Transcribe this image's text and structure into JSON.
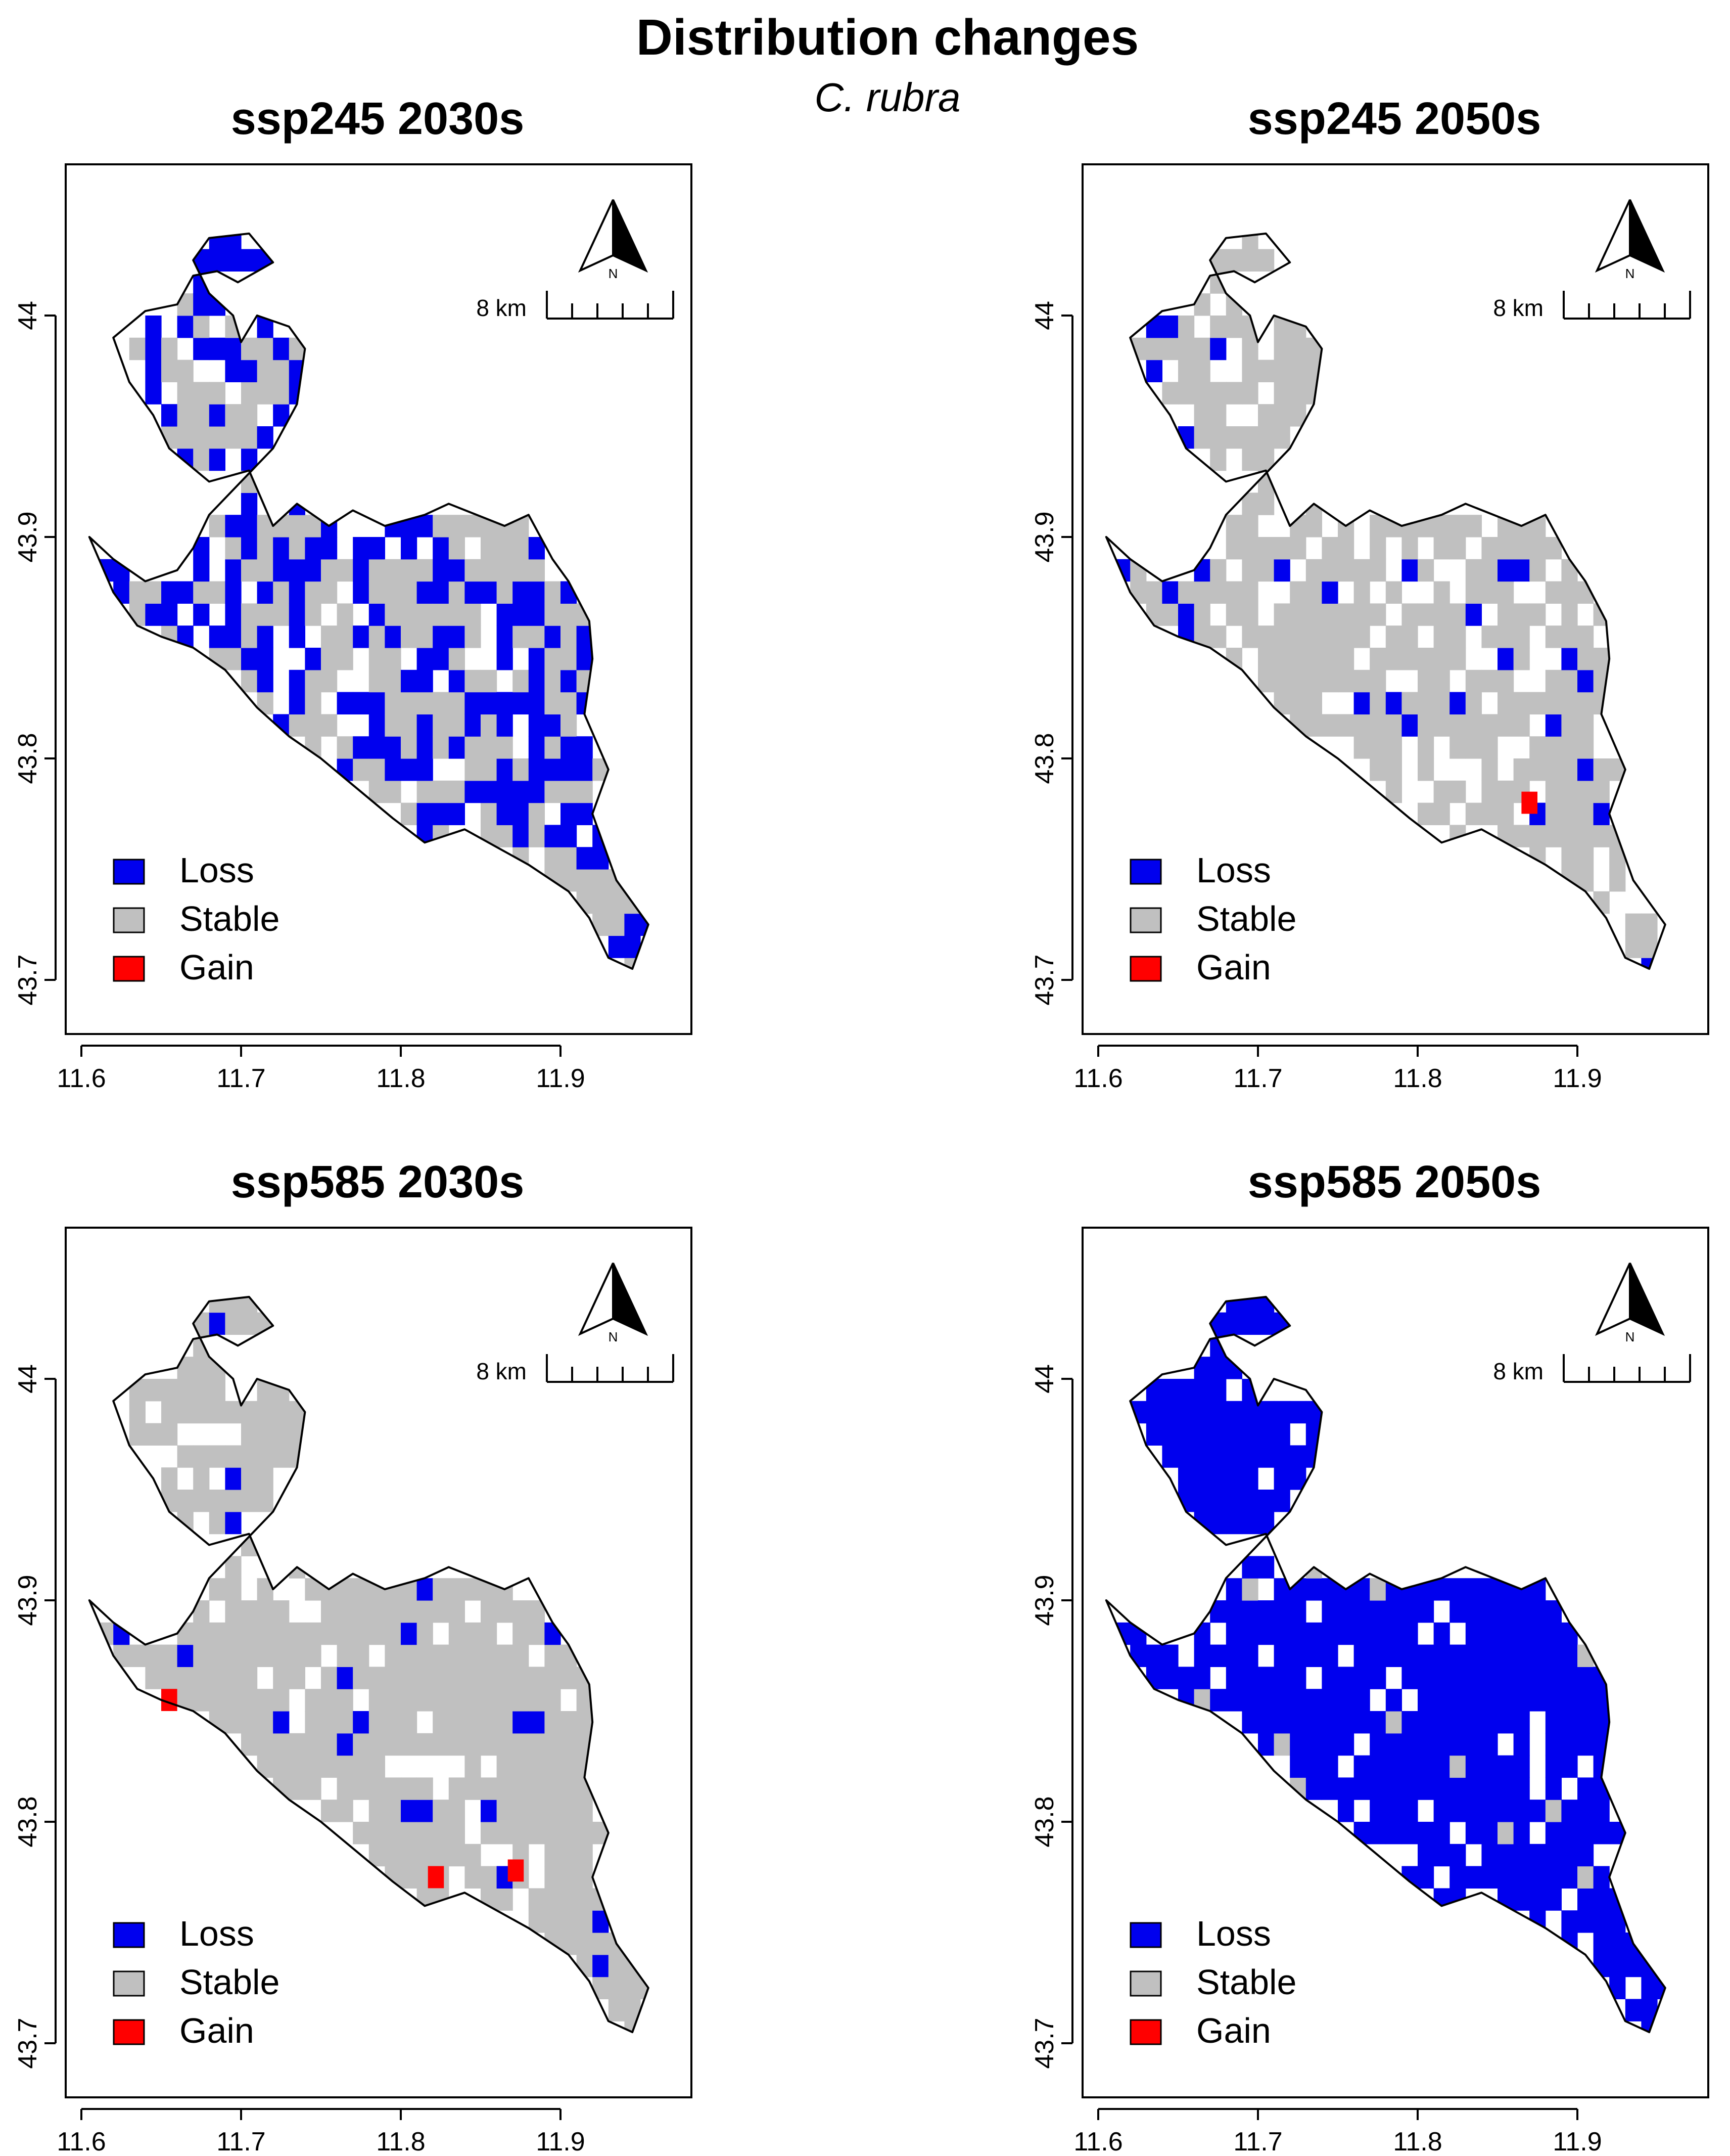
{
  "figure": {
    "title": "Distribution changes",
    "subtitle": "C. rubra"
  },
  "colors": {
    "loss": "#0000ee",
    "stable": "#c0c0c0",
    "gain": "#ff0000",
    "outline": "#000000"
  },
  "axes": {
    "x_ticks": [
      "11.6",
      "11.7",
      "11.8",
      "11.9"
    ],
    "y_ticks": [
      "43.7",
      "43.8",
      "43.9",
      "44"
    ],
    "xlim": [
      11.6,
      11.95
    ],
    "ylim": [
      43.7,
      44.05
    ]
  },
  "legend": {
    "items": [
      {
        "label": "Loss",
        "color_key": "loss"
      },
      {
        "label": "Stable",
        "color_key": "stable"
      },
      {
        "label": "Gain",
        "color_key": "gain"
      }
    ]
  },
  "north_arrow": {
    "label": "N"
  },
  "scale_bar": {
    "label": "8 km"
  },
  "chart_data": [
    {
      "type": "heatmap",
      "title": "ssp245 2030s",
      "categories": [
        "Loss",
        "Stable",
        "Gain"
      ],
      "dominant": "mixed loss and stable",
      "gain_cells": 0,
      "gain_points": []
    },
    {
      "type": "heatmap",
      "title": "ssp245 2050s",
      "categories": [
        "Loss",
        "Stable",
        "Gain"
      ],
      "dominant": "stable",
      "gain_cells": 1,
      "gain_points": [
        [
          11.87,
          43.78
        ]
      ]
    },
    {
      "type": "heatmap",
      "title": "ssp585 2030s",
      "categories": [
        "Loss",
        "Stable",
        "Gain"
      ],
      "dominant": "stable",
      "gain_cells": 3,
      "gain_points": [
        [
          11.655,
          43.855
        ],
        [
          11.822,
          43.775
        ],
        [
          11.872,
          43.778
        ]
      ]
    },
    {
      "type": "heatmap",
      "title": "ssp585 2050s",
      "categories": [
        "Loss",
        "Stable",
        "Gain"
      ],
      "dominant": "loss",
      "gain_cells": 0,
      "gain_points": []
    }
  ]
}
